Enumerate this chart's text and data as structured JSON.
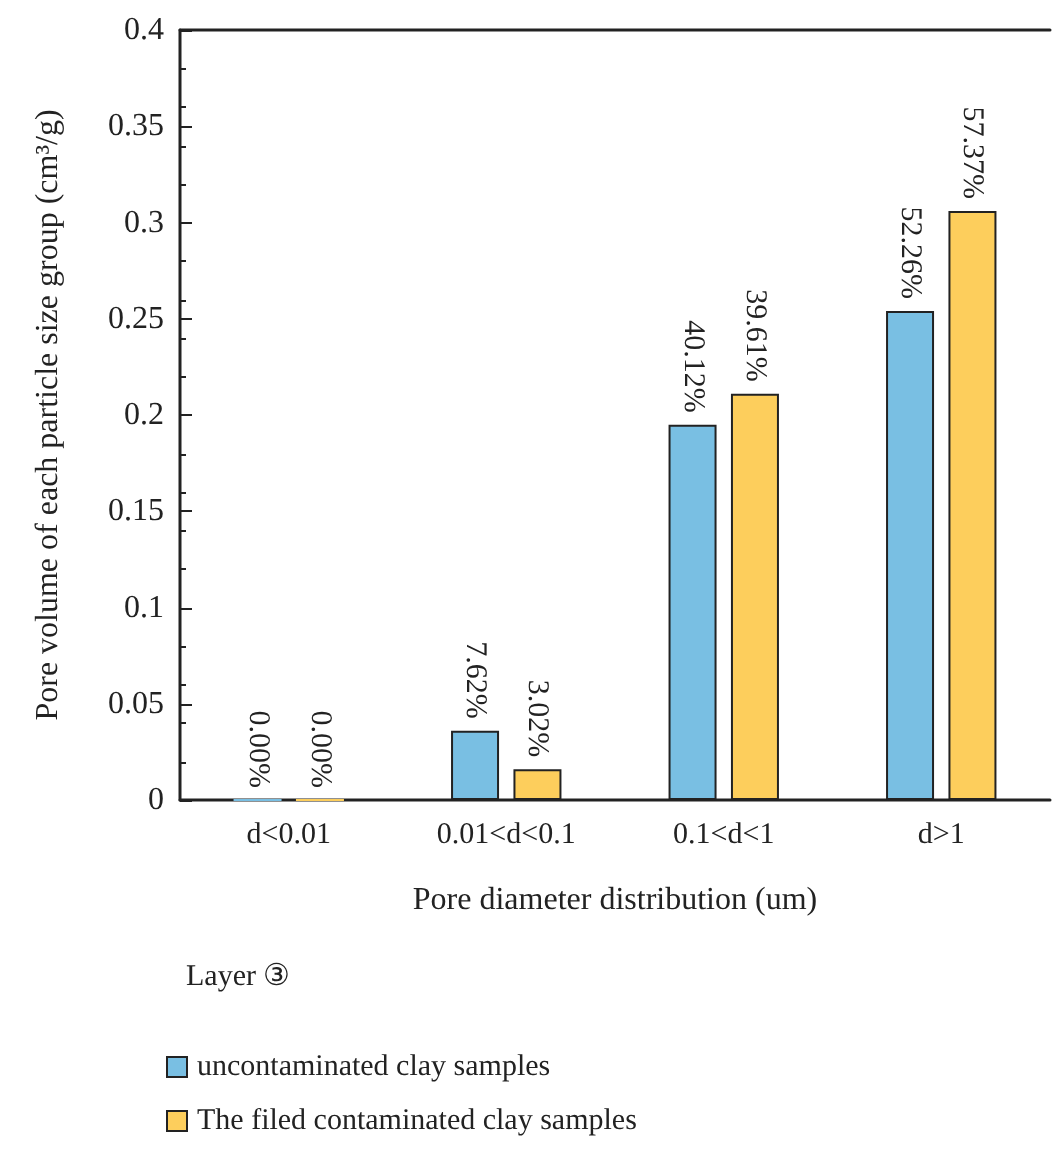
{
  "chart_data": {
    "type": "bar",
    "xlabel": "Pore diameter distribution (um)",
    "ylabel": "Pore volume of each particle size group (cm³/g)",
    "legend_title": "Layer ③",
    "categories": [
      "d<0.01",
      "0.01<d<0.1",
      "0.1<d<1",
      "d>1"
    ],
    "series": [
      {
        "name": "uncontaminated clay samples",
        "color": "#79bfe3",
        "values": [
          0,
          0.036,
          0.195,
          0.254
        ]
      },
      {
        "name": "The filed contaminated clay samples",
        "color": "#fdce5c",
        "values": [
          0,
          0.016,
          0.211,
          0.306
        ]
      }
    ],
    "annotations": [
      {
        "text": "0.00%",
        "x": "d<0.01",
        "y": 0
      },
      {
        "text": "7.62%",
        "x": "0.01<d<0.1",
        "y": 0.036
      },
      {
        "text": "40.12%",
        "x": "0.1<d<1",
        "y": 0.195
      },
      {
        "text": "52.26%",
        "x": "d>1",
        "y": 0.254
      },
      {
        "text": "0.00%",
        "x": "d<0.01",
        "y": 0
      },
      {
        "text": "3.02%",
        "x": "0.01<d<0.1",
        "y": 0.016
      },
      {
        "text": "39.61%",
        "x": "0.1<d<1",
        "y": 0.211
      },
      {
        "text": "57.37%",
        "x": "d>1",
        "y": 0.306
      }
    ],
    "ylim": [
      0,
      0.4
    ],
    "yticks": [
      0,
      0.05,
      0.1,
      0.15,
      0.2,
      0.25,
      0.3,
      0.35,
      0.4
    ],
    "grid": false,
    "legend": "bottom left"
  }
}
